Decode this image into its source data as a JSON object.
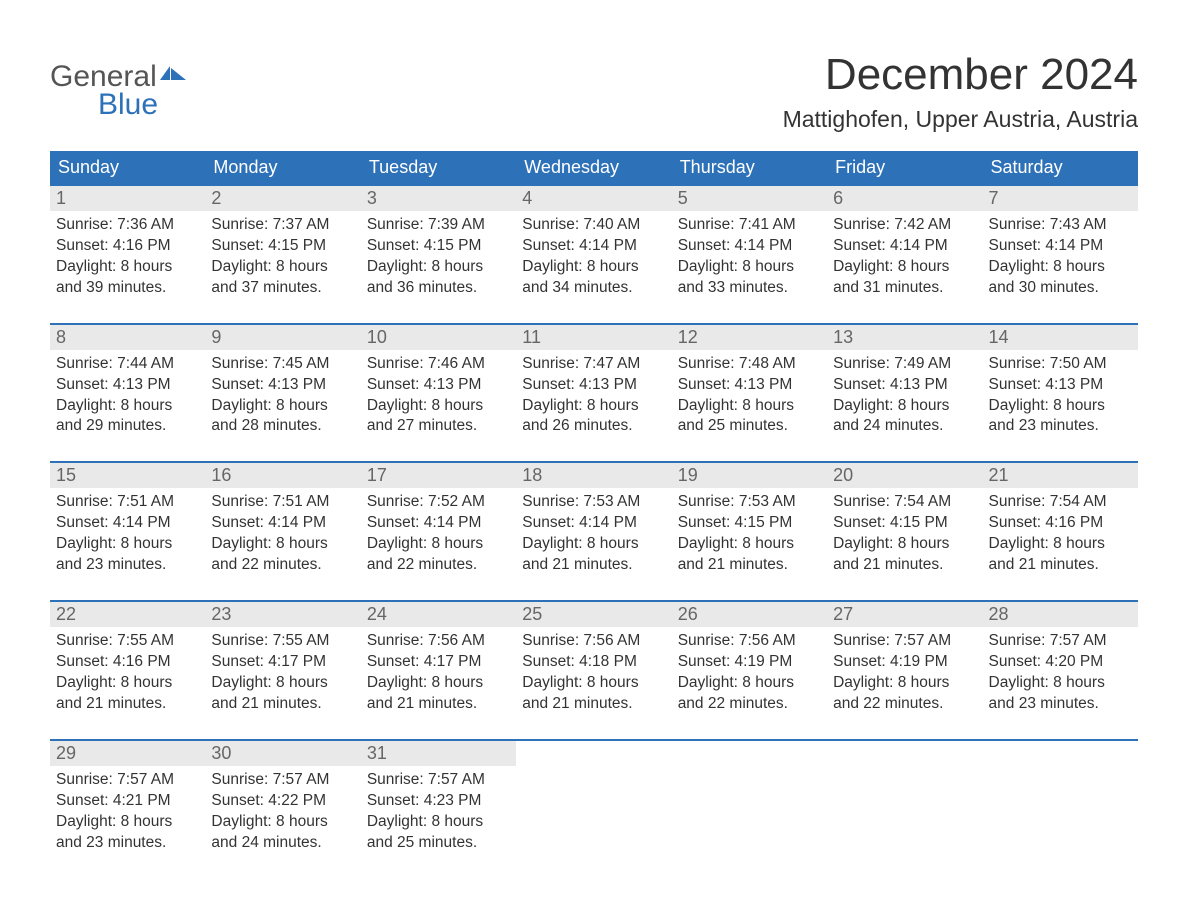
{
  "brand": {
    "general": "General",
    "blue": "Blue"
  },
  "title": "December 2024",
  "location": "Mattighofen, Upper Austria, Austria",
  "dayHeaders": [
    "Sunday",
    "Monday",
    "Tuesday",
    "Wednesday",
    "Thursday",
    "Friday",
    "Saturday"
  ],
  "style": {
    "headerBg": "#2d71b8",
    "headerText": "#ffffff",
    "dayNumBg": "#e9e9e9",
    "dayNumText": "#666666",
    "bodyText": "#333333",
    "weekBorder": "#2d71b8",
    "titleFontSize": 44,
    "locationFontSize": 23,
    "headerFontSize": 18,
    "bodyFontSize": 15.5
  },
  "weeks": [
    [
      {
        "n": "1",
        "sunrise": "7:36 AM",
        "sunset": "4:16 PM",
        "daylight": "8 hours and 39 minutes."
      },
      {
        "n": "2",
        "sunrise": "7:37 AM",
        "sunset": "4:15 PM",
        "daylight": "8 hours and 37 minutes."
      },
      {
        "n": "3",
        "sunrise": "7:39 AM",
        "sunset": "4:15 PM",
        "daylight": "8 hours and 36 minutes."
      },
      {
        "n": "4",
        "sunrise": "7:40 AM",
        "sunset": "4:14 PM",
        "daylight": "8 hours and 34 minutes."
      },
      {
        "n": "5",
        "sunrise": "7:41 AM",
        "sunset": "4:14 PM",
        "daylight": "8 hours and 33 minutes."
      },
      {
        "n": "6",
        "sunrise": "7:42 AM",
        "sunset": "4:14 PM",
        "daylight": "8 hours and 31 minutes."
      },
      {
        "n": "7",
        "sunrise": "7:43 AM",
        "sunset": "4:14 PM",
        "daylight": "8 hours and 30 minutes."
      }
    ],
    [
      {
        "n": "8",
        "sunrise": "7:44 AM",
        "sunset": "4:13 PM",
        "daylight": "8 hours and 29 minutes."
      },
      {
        "n": "9",
        "sunrise": "7:45 AM",
        "sunset": "4:13 PM",
        "daylight": "8 hours and 28 minutes."
      },
      {
        "n": "10",
        "sunrise": "7:46 AM",
        "sunset": "4:13 PM",
        "daylight": "8 hours and 27 minutes."
      },
      {
        "n": "11",
        "sunrise": "7:47 AM",
        "sunset": "4:13 PM",
        "daylight": "8 hours and 26 minutes."
      },
      {
        "n": "12",
        "sunrise": "7:48 AM",
        "sunset": "4:13 PM",
        "daylight": "8 hours and 25 minutes."
      },
      {
        "n": "13",
        "sunrise": "7:49 AM",
        "sunset": "4:13 PM",
        "daylight": "8 hours and 24 minutes."
      },
      {
        "n": "14",
        "sunrise": "7:50 AM",
        "sunset": "4:13 PM",
        "daylight": "8 hours and 23 minutes."
      }
    ],
    [
      {
        "n": "15",
        "sunrise": "7:51 AM",
        "sunset": "4:14 PM",
        "daylight": "8 hours and 23 minutes."
      },
      {
        "n": "16",
        "sunrise": "7:51 AM",
        "sunset": "4:14 PM",
        "daylight": "8 hours and 22 minutes."
      },
      {
        "n": "17",
        "sunrise": "7:52 AM",
        "sunset": "4:14 PM",
        "daylight": "8 hours and 22 minutes."
      },
      {
        "n": "18",
        "sunrise": "7:53 AM",
        "sunset": "4:14 PM",
        "daylight": "8 hours and 21 minutes."
      },
      {
        "n": "19",
        "sunrise": "7:53 AM",
        "sunset": "4:15 PM",
        "daylight": "8 hours and 21 minutes."
      },
      {
        "n": "20",
        "sunrise": "7:54 AM",
        "sunset": "4:15 PM",
        "daylight": "8 hours and 21 minutes."
      },
      {
        "n": "21",
        "sunrise": "7:54 AM",
        "sunset": "4:16 PM",
        "daylight": "8 hours and 21 minutes."
      }
    ],
    [
      {
        "n": "22",
        "sunrise": "7:55 AM",
        "sunset": "4:16 PM",
        "daylight": "8 hours and 21 minutes."
      },
      {
        "n": "23",
        "sunrise": "7:55 AM",
        "sunset": "4:17 PM",
        "daylight": "8 hours and 21 minutes."
      },
      {
        "n": "24",
        "sunrise": "7:56 AM",
        "sunset": "4:17 PM",
        "daylight": "8 hours and 21 minutes."
      },
      {
        "n": "25",
        "sunrise": "7:56 AM",
        "sunset": "4:18 PM",
        "daylight": "8 hours and 21 minutes."
      },
      {
        "n": "26",
        "sunrise": "7:56 AM",
        "sunset": "4:19 PM",
        "daylight": "8 hours and 22 minutes."
      },
      {
        "n": "27",
        "sunrise": "7:57 AM",
        "sunset": "4:19 PM",
        "daylight": "8 hours and 22 minutes."
      },
      {
        "n": "28",
        "sunrise": "7:57 AM",
        "sunset": "4:20 PM",
        "daylight": "8 hours and 23 minutes."
      }
    ],
    [
      {
        "n": "29",
        "sunrise": "7:57 AM",
        "sunset": "4:21 PM",
        "daylight": "8 hours and 23 minutes."
      },
      {
        "n": "30",
        "sunrise": "7:57 AM",
        "sunset": "4:22 PM",
        "daylight": "8 hours and 24 minutes."
      },
      {
        "n": "31",
        "sunrise": "7:57 AM",
        "sunset": "4:23 PM",
        "daylight": "8 hours and 25 minutes."
      },
      {
        "empty": true
      },
      {
        "empty": true
      },
      {
        "empty": true
      },
      {
        "empty": true
      }
    ]
  ],
  "labels": {
    "sunrise": "Sunrise: ",
    "sunset": "Sunset: ",
    "daylight": "Daylight: "
  }
}
